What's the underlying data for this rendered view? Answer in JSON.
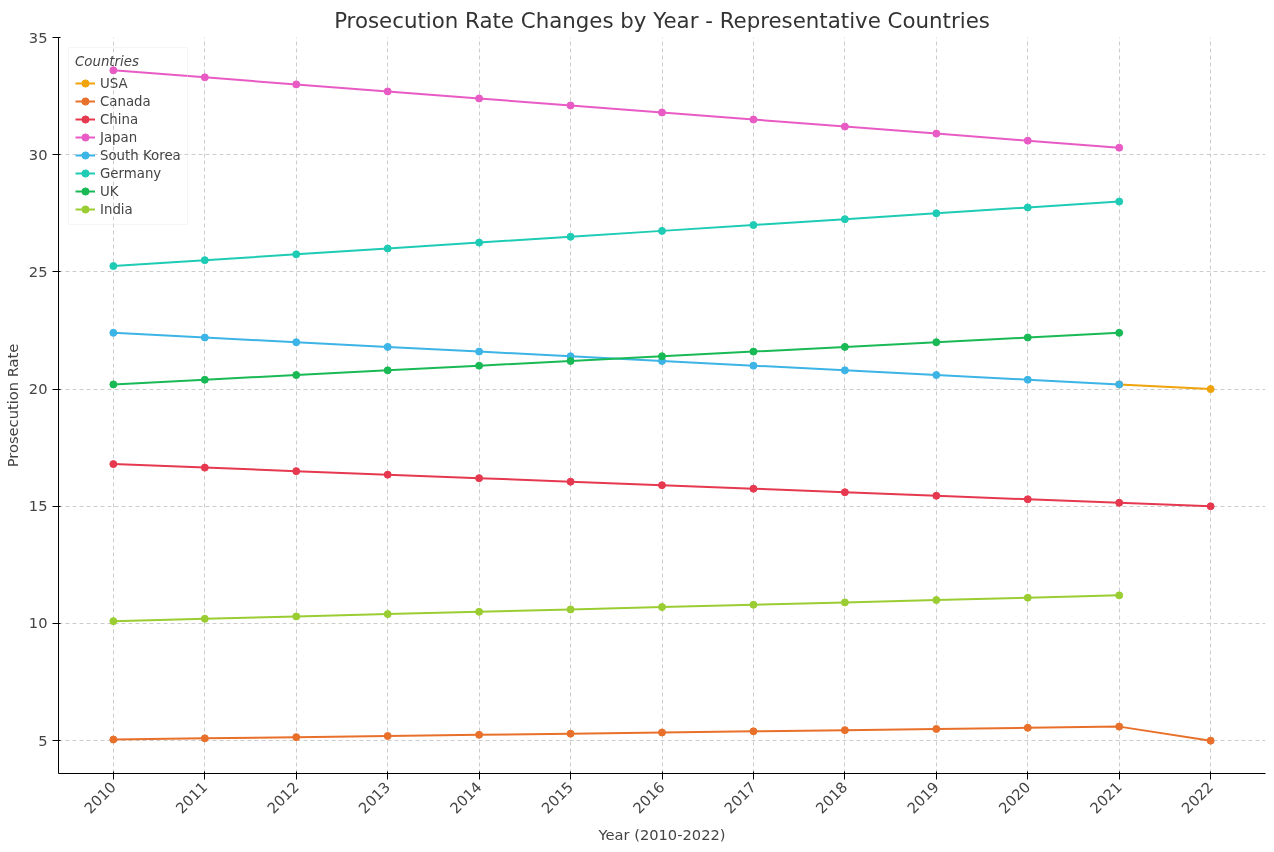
{
  "chart_data": {
    "type": "line",
    "title": "Prosecution Rate Changes by Year - Representative Countries",
    "xlabel": "Year (2010-2022)",
    "ylabel": "Prosecution Rate",
    "legend_title": "Countries",
    "legend": "top left",
    "grid": true,
    "marker": "circle",
    "line_style": "solid",
    "x": [
      2010,
      2011,
      2012,
      2013,
      2014,
      2015,
      2016,
      2017,
      2018,
      2019,
      2020,
      2021,
      2022
    ],
    "xlim": [
      2009.4,
      2022.6
    ],
    "xticks": [
      2010,
      2011,
      2012,
      2013,
      2014,
      2015,
      2016,
      2017,
      2018,
      2019,
      2020,
      2021,
      2022
    ],
    "ylim": [
      3.6,
      35
    ],
    "yticks": [
      5,
      10,
      15,
      20,
      25,
      30,
      35
    ],
    "series": [
      {
        "name": "USA",
        "color": "#f0a30a",
        "values": [
          null,
          null,
          null,
          null,
          null,
          null,
          null,
          null,
          null,
          null,
          null,
          20.2,
          20.0
        ]
      },
      {
        "name": "Canada",
        "color": "#e8702a",
        "values": [
          5.05,
          5.1,
          5.15,
          5.2,
          5.25,
          5.3,
          5.35,
          5.4,
          5.45,
          5.5,
          5.55,
          5.6,
          5.0
        ]
      },
      {
        "name": "China",
        "color": "#e6394f",
        "values": [
          16.8,
          16.65,
          16.5,
          16.35,
          16.2,
          16.05,
          15.9,
          15.75,
          15.6,
          15.45,
          15.3,
          15.15,
          15.0
        ]
      },
      {
        "name": "Japan",
        "color": "#e85bc4",
        "values": [
          33.6,
          33.3,
          33.0,
          32.7,
          32.4,
          32.1,
          31.8,
          31.5,
          31.2,
          30.9,
          30.6,
          30.3,
          null
        ]
      },
      {
        "name": "South Korea",
        "color": "#3cb4e6",
        "values": [
          22.4,
          22.2,
          22.0,
          21.8,
          21.6,
          21.4,
          21.2,
          21.0,
          20.8,
          20.6,
          20.4,
          20.2,
          null
        ]
      },
      {
        "name": "Germany",
        "color": "#1ecbb4",
        "values": [
          25.25,
          25.5,
          25.75,
          26.0,
          26.25,
          26.5,
          26.75,
          27.0,
          27.25,
          27.5,
          27.75,
          28.0,
          null
        ]
      },
      {
        "name": "UK",
        "color": "#19b955",
        "values": [
          20.2,
          20.4,
          20.6,
          20.8,
          21.0,
          21.2,
          21.4,
          21.6,
          21.8,
          22.0,
          22.2,
          22.4,
          null
        ]
      },
      {
        "name": "India",
        "color": "#9acd32",
        "values": [
          10.1,
          10.2,
          10.3,
          10.4,
          10.5,
          10.6,
          10.7,
          10.8,
          10.9,
          11.0,
          11.1,
          11.2,
          null
        ]
      }
    ]
  }
}
